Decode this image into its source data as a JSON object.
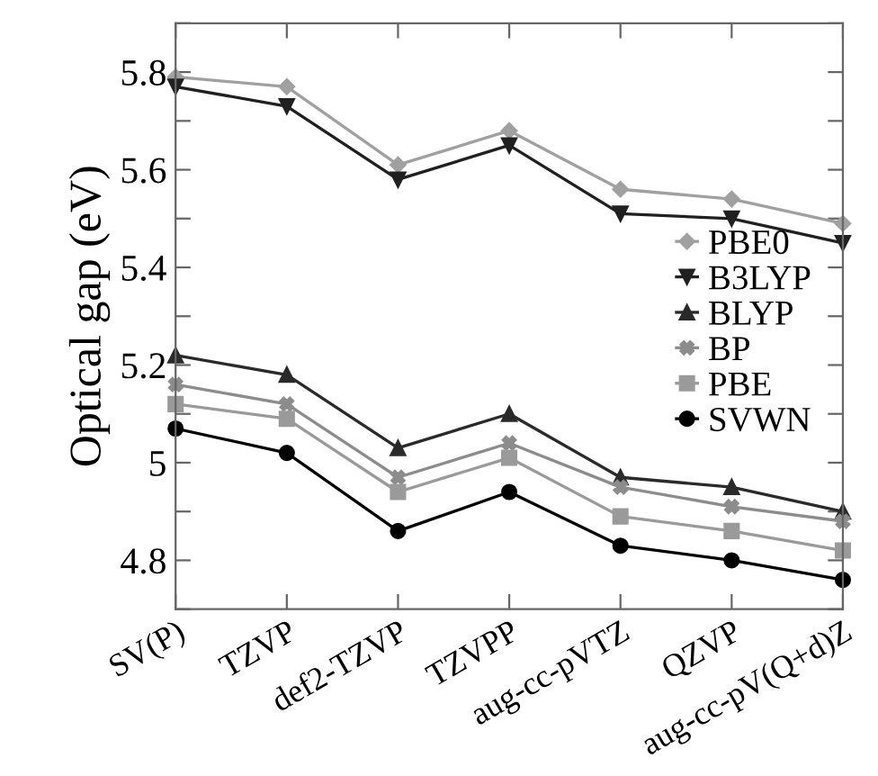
{
  "chart_data": {
    "type": "line",
    "ylabel": "Optical gap (eV)",
    "categories": [
      "SV(P)",
      "TZVP",
      "def2-TZVP",
      "TZVPP",
      "aug-cc-pVTZ",
      "QZVP",
      "aug-cc-pV(Q+d)Z"
    ],
    "ylim": [
      4.7,
      5.9
    ],
    "yticks": [
      {
        "value": 4.7,
        "label": null
      },
      4.8,
      {
        "value": 4.9,
        "label": null
      },
      {
        "value": 5.0,
        "label": "5"
      },
      {
        "value": 5.1,
        "label": null
      },
      5.2,
      {
        "value": 5.3,
        "label": null
      },
      5.4,
      {
        "value": 5.5,
        "label": null
      },
      5.6,
      {
        "value": 5.7,
        "label": null
      },
      5.8,
      {
        "value": 5.9,
        "label": null
      }
    ],
    "grid": false,
    "legend": "right",
    "line_style": "solid",
    "series": [
      {
        "name": "PBE0",
        "color": "#a0a0a0",
        "marker": "diamond",
        "values": [
          5.79,
          5.77,
          5.61,
          5.68,
          5.56,
          5.54,
          5.49
        ]
      },
      {
        "name": "B3LYP",
        "color": "#202020",
        "marker": "triangle_down",
        "values": [
          5.77,
          5.73,
          5.58,
          5.65,
          5.51,
          5.5,
          5.45
        ]
      },
      {
        "name": "BLYP",
        "color": "#2a2a2a",
        "marker": "triangle",
        "values": [
          5.22,
          5.18,
          5.03,
          5.1,
          4.97,
          4.95,
          4.9
        ]
      },
      {
        "name": "BP",
        "color": "#8c8c8c",
        "marker": "cross",
        "values": [
          5.16,
          5.12,
          4.97,
          5.04,
          4.95,
          4.91,
          4.88
        ]
      },
      {
        "name": "PBE",
        "color": "#9a9a9a",
        "marker": "square",
        "values": [
          5.12,
          5.09,
          4.94,
          5.01,
          4.89,
          4.86,
          4.82
        ]
      },
      {
        "name": "SVWN",
        "color": "#000000",
        "marker": "circle",
        "values": [
          5.07,
          5.02,
          4.86,
          4.94,
          4.83,
          4.8,
          4.76
        ]
      }
    ]
  }
}
